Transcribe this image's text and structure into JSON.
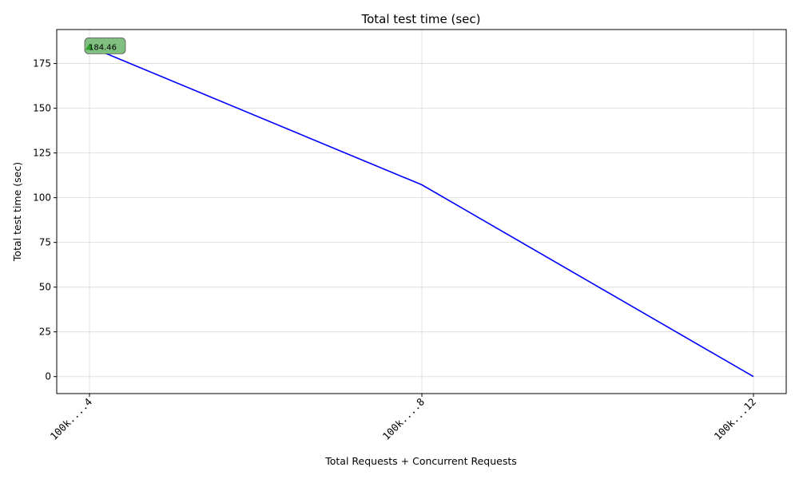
{
  "chart_data": {
    "type": "line",
    "title": "Total test time (sec)",
    "xlabel": "Total Requests + Concurrent Requests",
    "ylabel": "Total test time (sec)",
    "categories": [
      "100k....4",
      "100k....8",
      "100k...12"
    ],
    "series": [
      {
        "values": [
          184.46,
          107.2,
          0
        ],
        "color": "#0000ff"
      }
    ],
    "ylim": [
      -9.5,
      194
    ],
    "yticks": [
      0,
      25,
      50,
      75,
      100,
      125,
      150,
      175
    ],
    "ytick_labels": [
      "0",
      "25",
      "50",
      "75",
      "100",
      "125",
      "150",
      "175"
    ],
    "grid": true,
    "annotation": {
      "category_index": 0,
      "value": 184.46,
      "text": "184.46",
      "marker_color": "#2ca02c",
      "box_color": "#7fbf7f"
    }
  }
}
